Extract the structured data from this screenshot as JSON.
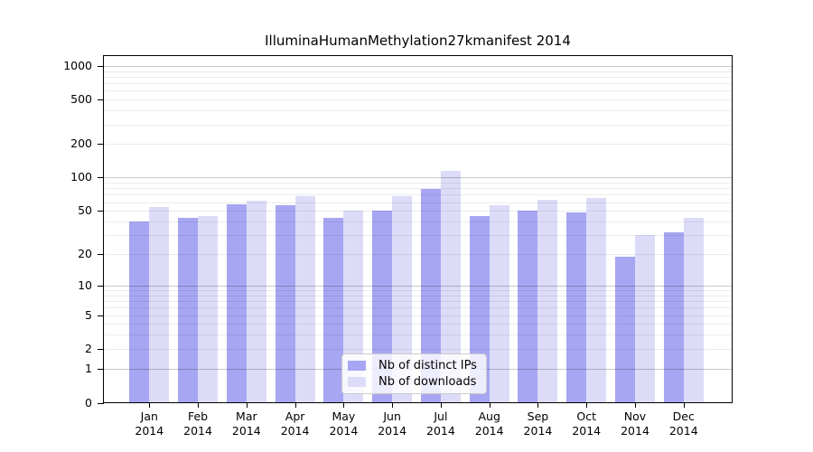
{
  "chart_data": {
    "type": "bar",
    "title": "IlluminaHumanMethylation27kmanifest 2014",
    "categories": [
      "Jan",
      "Feb",
      "Mar",
      "Apr",
      "May",
      "Jun",
      "Jul",
      "Aug",
      "Sep",
      "Oct",
      "Nov",
      "Dec"
    ],
    "year_label": "2014",
    "series": [
      {
        "name": "Nb of distinct IPs",
        "color": "#a6a6f2",
        "values": [
          40,
          43,
          57,
          56,
          43,
          50,
          79,
          45,
          50,
          48,
          19,
          32
        ]
      },
      {
        "name": "Nb of downloads",
        "color": "#dcdcf8",
        "values": [
          54,
          45,
          62,
          68,
          50,
          68,
          114,
          56,
          63,
          66,
          30,
          43
        ]
      }
    ],
    "yscale": "log1p",
    "y_tick_values": [
      1000,
      500,
      200,
      100,
      50,
      20,
      10,
      5,
      2,
      1,
      0
    ],
    "y_major_gridlines": [
      1,
      10,
      100,
      1000
    ],
    "ylim": [
      0,
      1250
    ],
    "grid": "horizontal",
    "legend_position": "bottom-center-inside",
    "axis_color": "#000000",
    "background_color": "#ffffff"
  }
}
